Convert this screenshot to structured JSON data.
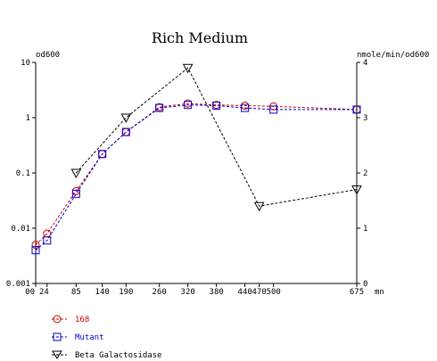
{
  "chart_data": {
    "type": "line",
    "title": "Rich Medium",
    "xunit": "mn",
    "left_axis_label": "od600",
    "right_axis_label": "nmole/min/od600",
    "x_ticks": [
      0,
      24,
      85,
      140,
      190,
      260,
      320,
      380,
      440,
      470,
      500,
      675
    ],
    "x_tick_labels": [
      "00",
      "24",
      "85",
      "140",
      "190",
      "260",
      "320",
      "380",
      "440",
      "470",
      "500",
      "675"
    ],
    "left_scale": "log",
    "left_range": [
      0.001,
      10
    ],
    "left_ticks": [
      10,
      1,
      0.1,
      0.01,
      0.001
    ],
    "left_tick_labels": [
      "10",
      "1",
      "0.1",
      "0.01",
      "0.001"
    ],
    "right_range": [
      0,
      4
    ],
    "right_ticks": [
      4,
      3,
      2,
      1,
      0
    ],
    "right_tick_labels": [
      "4",
      "3",
      "2",
      "1",
      "0"
    ],
    "series": [
      {
        "name": "168",
        "axis": "left",
        "color": "#cc0000",
        "marker": "circle",
        "points": [
          [
            0,
            0.005
          ],
          [
            24,
            0.008
          ],
          [
            85,
            0.047
          ],
          [
            140,
            0.22
          ],
          [
            190,
            0.55
          ],
          [
            260,
            1.55
          ],
          [
            320,
            1.8
          ],
          [
            380,
            1.7
          ],
          [
            440,
            1.65
          ],
          [
            500,
            1.6
          ],
          [
            675,
            1.4
          ]
        ]
      },
      {
        "name": "Mutant",
        "axis": "left",
        "color": "#0000cc",
        "marker": "square",
        "points": [
          [
            0,
            0.004
          ],
          [
            24,
            0.006
          ],
          [
            85,
            0.042
          ],
          [
            140,
            0.22
          ],
          [
            190,
            0.55
          ],
          [
            260,
            1.5
          ],
          [
            320,
            1.7
          ],
          [
            380,
            1.65
          ],
          [
            440,
            1.5
          ],
          [
            500,
            1.4
          ],
          [
            675,
            1.4
          ]
        ]
      },
      {
        "name": "Beta Galactosidase",
        "axis": "right",
        "color": "#000000",
        "marker": "triangle-down",
        "points": [
          [
            85,
            2.0
          ],
          [
            190,
            3.0
          ],
          [
            320,
            3.9
          ],
          [
            470,
            1.4
          ],
          [
            675,
            1.7
          ]
        ]
      }
    ]
  }
}
